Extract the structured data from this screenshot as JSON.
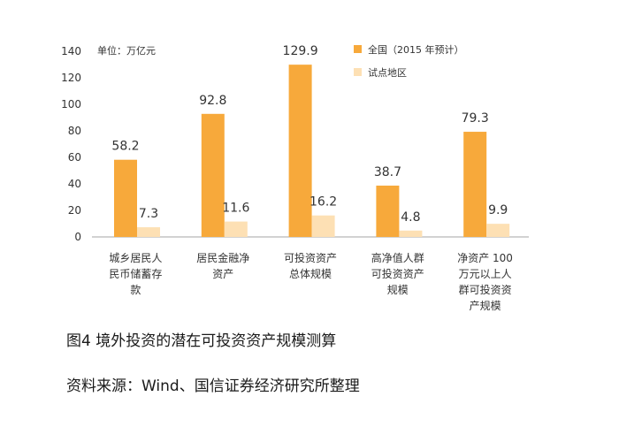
{
  "chart_data": {
    "type": "bar",
    "unit_label": "单位：万亿元",
    "categories": [
      [
        "城乡居民人",
        "民币储蓄存",
        "款"
      ],
      [
        "居民金融净",
        "资产"
      ],
      [
        "可投资资产",
        "总体规模"
      ],
      [
        "高净值人群",
        "可投资资产",
        "规模"
      ],
      [
        "净资产 100",
        "万元以上人",
        "群可投资资",
        "产规模"
      ]
    ],
    "series": [
      {
        "name": "全国（2015 年预计）",
        "color": "#f7a93b",
        "values": [
          58.2,
          92.8,
          129.9,
          38.7,
          79.3
        ],
        "labels": [
          "58.2",
          "92.8",
          "129.9",
          "38.7",
          "79.3"
        ]
      },
      {
        "name": "试点地区",
        "color": "#fde0b4",
        "values": [
          7.3,
          11.6,
          16.2,
          4.8,
          9.9
        ],
        "labels": [
          "7.3",
          "11.6",
          "16.2",
          "4.8",
          "9.9"
        ]
      }
    ],
    "ylim": [
      0,
      140
    ],
    "yticks": [
      0,
      20,
      40,
      60,
      80,
      100,
      120,
      140
    ],
    "grid": false,
    "legend_position": "top-right"
  },
  "figure_caption": "图4 境外投资的潜在可投资资产规模测算",
  "source_caption": "资料来源：Wind、国信证券经济研究所整理"
}
